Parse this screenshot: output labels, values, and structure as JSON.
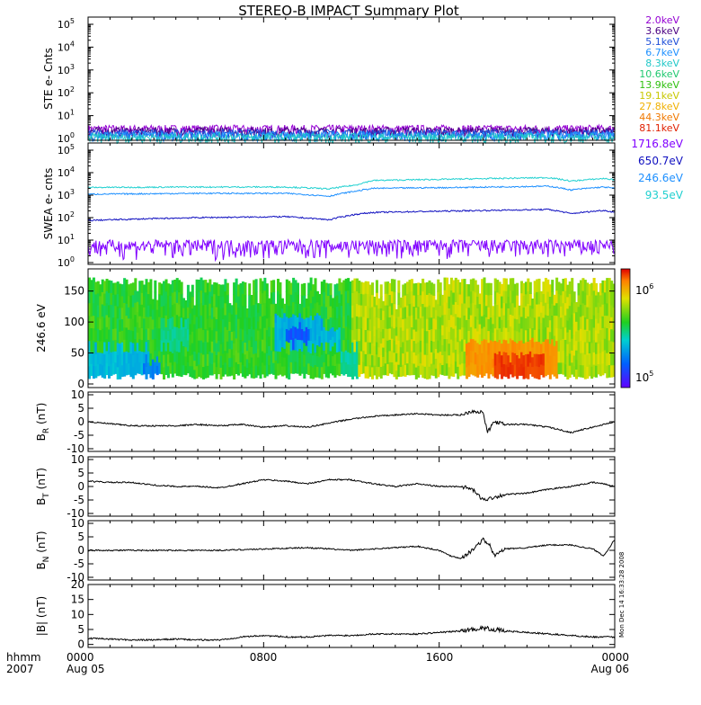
{
  "title": "STEREO-B IMPACT Summary Plot",
  "footer": {
    "label_top": "hhmm",
    "label_bottom": "2007",
    "ticks_top": [
      "0000",
      "0800",
      "1600",
      "0000"
    ],
    "ticks_bottom": [
      "Aug 05",
      "",
      "",
      "Aug 06"
    ]
  },
  "timestamp": "Mon Dec 14 16:33:28 2008",
  "ste_legend": [
    {
      "label": "2.0keV",
      "color": "#9400d3"
    },
    {
      "label": "3.6keV",
      "color": "#4b0082"
    },
    {
      "label": "5.1keV",
      "color": "#1f4fd8"
    },
    {
      "label": "6.7keV",
      "color": "#1e90ff"
    },
    {
      "label": "8.3keV",
      "color": "#20c8c8"
    },
    {
      "label": "10.6keV",
      "color": "#20c870"
    },
    {
      "label": "13.9keV",
      "color": "#30c010"
    },
    {
      "label": "19.1keV",
      "color": "#c8c800"
    },
    {
      "label": "27.8keV",
      "color": "#f0b000"
    },
    {
      "label": "44.3keV",
      "color": "#f07800"
    },
    {
      "label": "81.1keV",
      "color": "#e02000"
    }
  ],
  "swea_legend": [
    {
      "label": "1716.8eV",
      "color": "#8000ff"
    },
    {
      "label": "650.7eV",
      "color": "#1010c0"
    },
    {
      "label": "246.6eV",
      "color": "#1e90ff"
    },
    {
      "label": "93.5eV",
      "color": "#20d0d0"
    }
  ],
  "colorbar": {
    "label_top": "10",
    "exp_top": "6",
    "label_bottom": "10",
    "exp_bottom": "5"
  },
  "chart_data": [
    {
      "type": "line",
      "panel": "STE",
      "ylabel": "STE e- Cnts",
      "ylog": true,
      "ytick_exponents": [
        0,
        1,
        2,
        3,
        4,
        5
      ],
      "ylim": [
        1,
        100000
      ],
      "xlim_hours": [
        0,
        24
      ],
      "series": [
        {
          "name": "2.0keV",
          "level": 2.5
        },
        {
          "name": "3.6keV",
          "level": 2.0
        },
        {
          "name": "5.1keV",
          "level": 1.6
        },
        {
          "name": "6.7keV",
          "level": 1.3
        },
        {
          "name": "8.3keV",
          "level": 1.1
        }
      ]
    },
    {
      "type": "line",
      "panel": "SWEA",
      "ylabel": "SWEA e- cnts",
      "ylog": true,
      "ytick_exponents": [
        0,
        1,
        2,
        3,
        4,
        5
      ],
      "ylim": [
        1,
        100000
      ],
      "xlim_hours": [
        0,
        24
      ],
      "series": [
        {
          "name": "93.5eV",
          "x": [
            0,
            5,
            9,
            11,
            12.2,
            13,
            17,
            21,
            22,
            23.5,
            24
          ],
          "y": [
            2200,
            2300,
            2300,
            1900,
            2800,
            4500,
            5200,
            6000,
            4200,
            5500,
            4800
          ]
        },
        {
          "name": "246.6eV",
          "x": [
            0,
            5,
            9,
            11,
            12.2,
            13,
            17,
            21,
            22,
            23.5,
            24
          ],
          "y": [
            1100,
            1200,
            1200,
            900,
            1500,
            2000,
            2200,
            2500,
            1700,
            2300,
            2000
          ]
        },
        {
          "name": "650.7eV",
          "x": [
            0,
            5,
            9,
            11,
            12.2,
            13,
            17,
            21,
            22,
            23.5,
            24
          ],
          "y": [
            75,
            100,
            110,
            80,
            140,
            170,
            200,
            230,
            150,
            210,
            170
          ]
        },
        {
          "name": "1716.8eV",
          "x": [
            0,
            24
          ],
          "y": [
            5,
            5
          ]
        }
      ]
    },
    {
      "type": "heatmap",
      "panel": "SWEA pitch angle",
      "ylabel": "246.6 eV",
      "yticks": [
        0,
        50,
        100,
        150
      ],
      "ylim": [
        0,
        180
      ],
      "xlim_hours": [
        0,
        24
      ],
      "colorbar_range_exponents": [
        5,
        6
      ],
      "patches": [
        {
          "t0": 0,
          "t1": 2.7,
          "y0": 10,
          "y1": 60,
          "v": 0.3
        },
        {
          "t0": 2.5,
          "t1": 3.2,
          "y0": 5,
          "y1": 40,
          "v": 0.22
        },
        {
          "t0": 3.3,
          "t1": 4.5,
          "y0": 60,
          "y1": 100,
          "v": 0.4
        },
        {
          "t0": 8.5,
          "t1": 10.6,
          "y0": 60,
          "y1": 110,
          "v": 0.28
        },
        {
          "t0": 9,
          "t1": 10,
          "y0": 65,
          "y1": 95,
          "v": 0.15
        },
        {
          "t0": 10.6,
          "t1": 11.4,
          "y0": 60,
          "y1": 90,
          "v": 0.3
        },
        {
          "t0": 11.5,
          "t1": 12.2,
          "y0": 5,
          "y1": 60,
          "v": 0.38
        },
        {
          "t0": 17.2,
          "t1": 21.3,
          "y0": 10,
          "y1": 70,
          "v": 0.8
        },
        {
          "t0": 18.5,
          "t1": 20.7,
          "y0": 10,
          "y1": 45,
          "v": 0.92
        }
      ]
    },
    {
      "type": "line",
      "panel": "BR",
      "ylabel": "B",
      "ylabel_sub": "R",
      "ylabel_unit": " (nT)",
      "yticks": [
        -10,
        -5,
        0,
        5,
        10
      ],
      "ylim": [
        -11,
        11
      ],
      "xlim_hours": [
        0,
        24
      ],
      "x": [
        0,
        2,
        4,
        5,
        6,
        7,
        8,
        9,
        10,
        11,
        12,
        13,
        14,
        15,
        16,
        17,
        17.5,
        18,
        18.2,
        18.5,
        19,
        20,
        21,
        22,
        22.5,
        23,
        23.5,
        24
      ],
      "y": [
        0,
        -1.5,
        -1.5,
        -1,
        -1.5,
        -1,
        -2,
        -1.5,
        -2,
        -0.5,
        1,
        2,
        2.5,
        3,
        2.5,
        2.5,
        4,
        3.5,
        -4,
        0,
        -1,
        -1,
        -2,
        -4,
        -3,
        -2,
        -1,
        0
      ]
    },
    {
      "type": "line",
      "panel": "BT",
      "ylabel": "B",
      "ylabel_sub": "T",
      "ylabel_unit": " (nT)",
      "yticks": [
        -10,
        -5,
        0,
        5,
        10
      ],
      "ylim": [
        -11,
        11
      ],
      "xlim_hours": [
        0,
        24
      ],
      "x": [
        0,
        1,
        2,
        3,
        4,
        5,
        6,
        7,
        8,
        9,
        10,
        11,
        12,
        13,
        14,
        15,
        16,
        17,
        17.5,
        18,
        18.5,
        19,
        20,
        21,
        22,
        23,
        23.5,
        24
      ],
      "y": [
        2,
        1.5,
        1.5,
        0.5,
        0,
        0,
        -0.5,
        1,
        2.5,
        2,
        1,
        2.5,
        2.5,
        1,
        0,
        1,
        0,
        0,
        -1,
        -5,
        -4,
        -3,
        -2.5,
        -1,
        0,
        1.5,
        1,
        0
      ]
    },
    {
      "type": "line",
      "panel": "BN",
      "ylabel": "B",
      "ylabel_sub": "N",
      "ylabel_unit": " (nT)",
      "yticks": [
        -10,
        -5,
        0,
        5,
        10
      ],
      "ylim": [
        -11,
        11
      ],
      "xlim_hours": [
        0,
        24
      ],
      "x": [
        0,
        2,
        4,
        6,
        8,
        10,
        12,
        14,
        15,
        16,
        16.5,
        17,
        17.5,
        18,
        18.3,
        18.5,
        19,
        20,
        21,
        22,
        23,
        23.5,
        24
      ],
      "y": [
        0,
        0,
        0,
        0,
        0.5,
        1,
        0,
        1,
        1.5,
        0,
        -2,
        -3,
        0,
        4,
        2,
        -2,
        0.5,
        1,
        2,
        2,
        0.5,
        -2,
        4
      ]
    },
    {
      "type": "line",
      "panel": "|B|",
      "ylabel": "|B| (nT)",
      "yticks": [
        0,
        5,
        10,
        15,
        20
      ],
      "ylim": [
        -1,
        20
      ],
      "xlim_hours": [
        0,
        24
      ],
      "x": [
        0,
        1,
        2,
        3,
        4,
        5,
        6,
        7,
        8,
        9,
        10,
        11,
        12,
        13,
        14,
        15,
        16,
        17,
        18,
        19,
        20,
        21,
        22,
        23,
        24
      ],
      "y": [
        2,
        1.8,
        1.5,
        1.5,
        1.8,
        1.5,
        1.5,
        2.5,
        3,
        2.5,
        2.5,
        3,
        3,
        3.5,
        3.5,
        3.5,
        4,
        4.5,
        5.5,
        4.5,
        4,
        3.5,
        3,
        2.5,
        2.5
      ]
    }
  ]
}
